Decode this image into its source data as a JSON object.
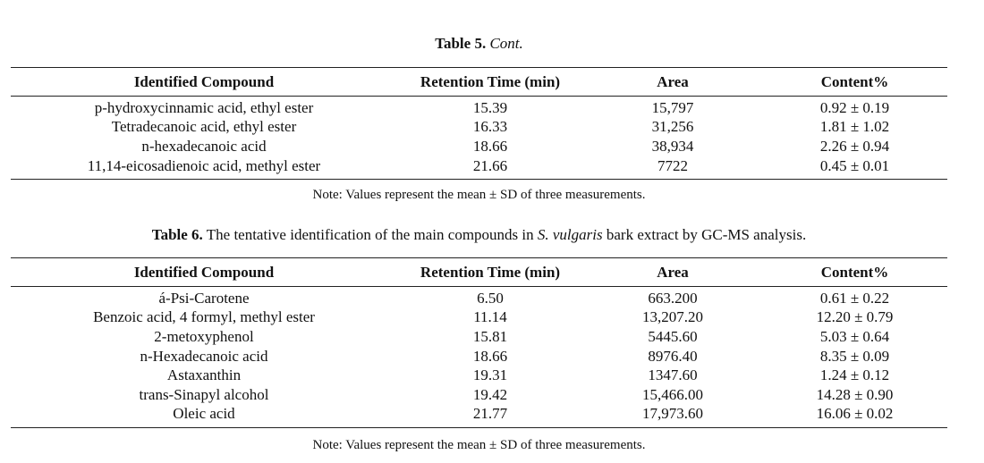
{
  "table5": {
    "caption_label": "Table 5.",
    "caption_text": "Cont.",
    "headers": [
      "Identified Compound",
      "Retention Time (min)",
      "Area",
      "Content%"
    ],
    "rows": [
      [
        "p-hydroxycinnamic acid, ethyl ester",
        "15.39",
        "15,797",
        "0.92 ± 0.19"
      ],
      [
        "Tetradecanoic acid, ethyl ester",
        "16.33",
        "31,256",
        "1.81 ± 1.02"
      ],
      [
        "n-hexadecanoic acid",
        "18.66",
        "38,934",
        "2.26 ± 0.94"
      ],
      [
        "11,14-eicosadienoic acid, methyl ester",
        "21.66",
        "7722",
        "0.45 ± 0.01"
      ]
    ],
    "note": "Note: Values represent the mean ± SD of three measurements."
  },
  "table6": {
    "caption_label": "Table 6.",
    "caption_pre": "The tentative identification of the main compounds in",
    "caption_italic": "S. vulgaris",
    "caption_post": "bark extract by GC-MS analysis.",
    "headers": [
      "Identified Compound",
      "Retention Time (min)",
      "Area",
      "Content%"
    ],
    "rows": [
      [
        "á-Psi-Carotene",
        "6.50",
        "663.200",
        "0.61 ± 0.22"
      ],
      [
        "Benzoic acid, 4 formyl, methyl ester",
        "11.14",
        "13,207.20",
        "12.20 ± 0.79"
      ],
      [
        "2-metoxyphenol",
        "15.81",
        "5445.60",
        "5.03 ± 0.64"
      ],
      [
        "n-Hexadecanoic acid",
        "18.66",
        "8976.40",
        "8.35 ± 0.09"
      ],
      [
        "Astaxanthin",
        "19.31",
        "1347.60",
        "1.24 ± 0.12"
      ],
      [
        "trans-Sinapyl alcohol",
        "19.42",
        "15,466.00",
        "14.28 ± 0.90"
      ],
      [
        "Oleic acid",
        "21.77",
        "17,973.60",
        "16.06 ± 0.02"
      ]
    ],
    "note": "Note: Values represent the mean ± SD of three measurements."
  }
}
